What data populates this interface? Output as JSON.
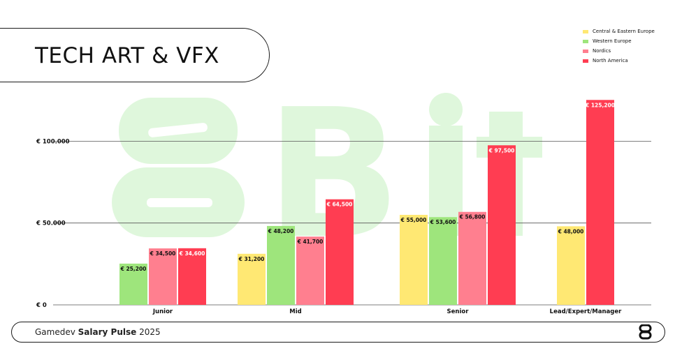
{
  "header": {
    "title": "TECH ART & VFX"
  },
  "footer": {
    "prefix": "Gamedev",
    "bold": "Salary Pulse",
    "year": "2025"
  },
  "watermark": {
    "text": "8Bit",
    "color": "#dff7dc"
  },
  "chart_data": {
    "type": "bar",
    "title": "TECH ART & VFX",
    "categories": [
      "Junior",
      "Mid",
      "Senior",
      "Lead/Expert/Manager"
    ],
    "series": [
      {
        "name": "Central & Eastern Europe",
        "color": "#ffe873",
        "values": [
          null,
          31200,
          55000,
          48000
        ],
        "labels": [
          "",
          "€ 31,200",
          "€ 55,000",
          "€ 48,000"
        ]
      },
      {
        "name": "Western Europe",
        "color": "#9ee57c",
        "values": [
          25200,
          48200,
          53600,
          null
        ],
        "labels": [
          "€ 25,200",
          "€ 48,200",
          "€ 53,600",
          ""
        ]
      },
      {
        "name": "Nordics",
        "color": "#ff7f8f",
        "values": [
          34500,
          41700,
          56800,
          null
        ],
        "labels": [
          "€ 34,500",
          "€ 41,700",
          "€ 56,800",
          ""
        ]
      },
      {
        "name": "North America",
        "color": "#ff3d52",
        "values": [
          34600,
          64500,
          97500,
          125200
        ],
        "labels": [
          "€ 34,600",
          "€ 64,500",
          "€ 97,500",
          "€ 125,200"
        ]
      }
    ],
    "yticks": [
      {
        "value": 0,
        "label": "€ 0"
      },
      {
        "value": 50000,
        "label": "€ 50.000"
      },
      {
        "value": 100000,
        "label": "€ 100.000"
      }
    ],
    "ylim": [
      0,
      130000
    ],
    "grid": true,
    "legend_position": "top-right"
  }
}
